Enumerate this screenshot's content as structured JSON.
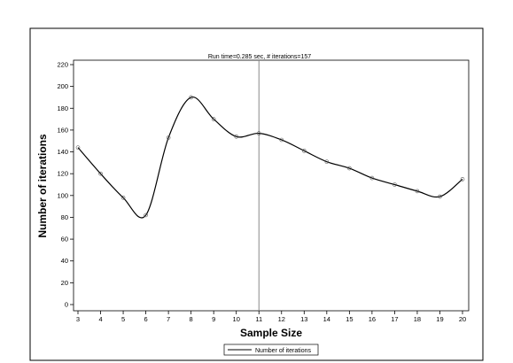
{
  "chart_data": {
    "type": "line",
    "title": "Run time=0.285 sec, # iterations=157",
    "xlabel": "Sample Size",
    "ylabel": "Number of iterations",
    "x": [
      3,
      4,
      5,
      6,
      7,
      8,
      9,
      10,
      11,
      12,
      13,
      14,
      15,
      16,
      17,
      18,
      19,
      20
    ],
    "series": [
      {
        "name": "Number of iterations",
        "values": [
          144,
          120,
          98,
          82,
          153,
          190,
          170,
          154,
          157,
          151,
          141,
          131,
          125,
          116,
          110,
          104,
          99,
          115
        ]
      }
    ],
    "xlim": [
      3,
      20
    ],
    "ylim": [
      0,
      220
    ],
    "yticks": [
      0,
      20,
      40,
      60,
      80,
      100,
      120,
      140,
      160,
      180,
      200,
      220
    ],
    "xticks": [
      3,
      4,
      5,
      6,
      7,
      8,
      9,
      10,
      11,
      12,
      13,
      14,
      15,
      16,
      17,
      18,
      19,
      20
    ],
    "reference_line_x": 11,
    "grid": false,
    "legend": "bottom-center",
    "colors": {
      "line": "#000000",
      "reference": "#888888",
      "markers": "#555555"
    }
  }
}
